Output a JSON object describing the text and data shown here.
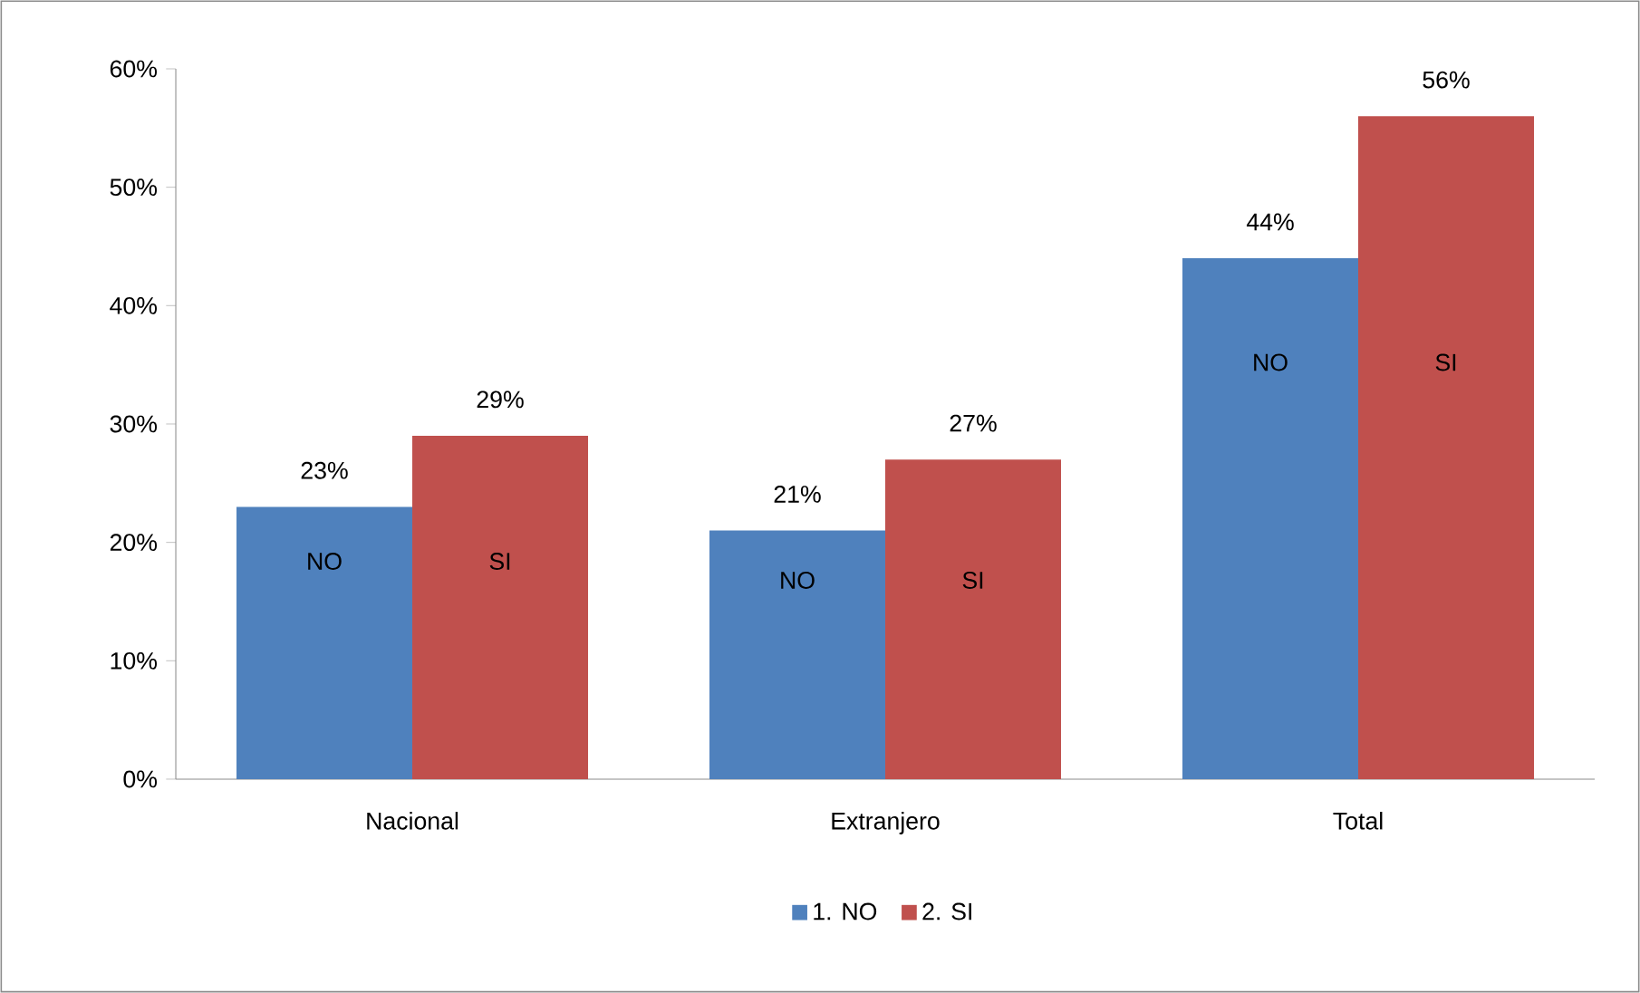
{
  "chart_data": {
    "type": "bar",
    "categories": [
      "Nacional",
      "Extranjero",
      "Total"
    ],
    "series": [
      {
        "name": "1. NO",
        "color": "#4f81bd",
        "values": [
          23,
          21,
          44
        ],
        "value_labels": [
          "23%",
          "21%",
          "44%"
        ]
      },
      {
        "name": "2. SI",
        "color": "#c0504d",
        "values": [
          29,
          27,
          56
        ],
        "value_labels": [
          "29%",
          "27%",
          "56%"
        ]
      }
    ],
    "annotations": [
      "NO",
      "SI",
      "NO",
      "SI",
      "NO",
      "SI"
    ],
    "ylim": [
      0,
      60
    ],
    "yticks": [
      {
        "value": 0,
        "label": "0%"
      },
      {
        "value": 10,
        "label": "10%"
      },
      {
        "value": 20,
        "label": "20%"
      },
      {
        "value": 30,
        "label": "30%"
      },
      {
        "value": 40,
        "label": "40%"
      },
      {
        "value": 50,
        "label": "50%"
      },
      {
        "value": 60,
        "label": "60%"
      }
    ],
    "grid": false,
    "legend": "bottom"
  }
}
